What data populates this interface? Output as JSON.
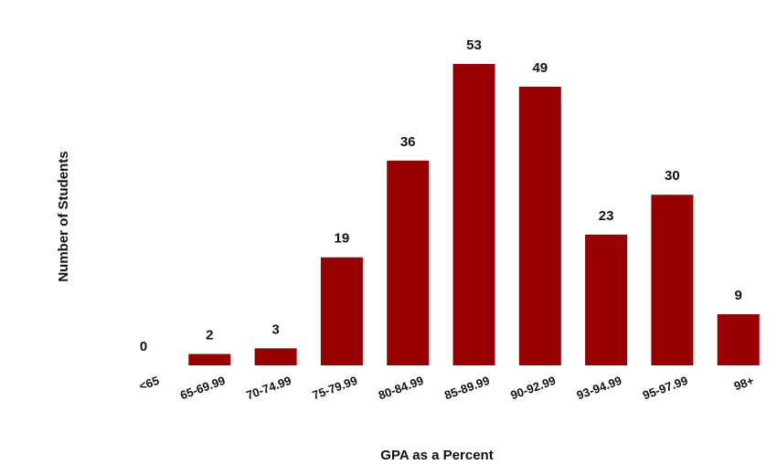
{
  "chart_data": {
    "type": "bar",
    "title": "",
    "xlabel": "GPA as a Percent",
    "ylabel": "Number of Students",
    "categories": [
      "<65",
      "65-69.99",
      "70-74.99",
      "75-79.99",
      "80-84.99",
      "85-89.99",
      "90-92.99",
      "93-94.99",
      "95-97.99",
      "98+"
    ],
    "values": [
      0,
      2,
      3,
      19,
      36,
      53,
      49,
      23,
      30,
      9
    ],
    "data_labels": [
      "0",
      "2",
      "3",
      "19",
      "36",
      "53",
      "49",
      "23",
      "30",
      "9"
    ],
    "ylim": [
      0,
      55
    ],
    "grid": false,
    "legend": "none",
    "colors": {
      "bar": "#990000",
      "text": "#111111",
      "background": "#ffffff"
    }
  }
}
